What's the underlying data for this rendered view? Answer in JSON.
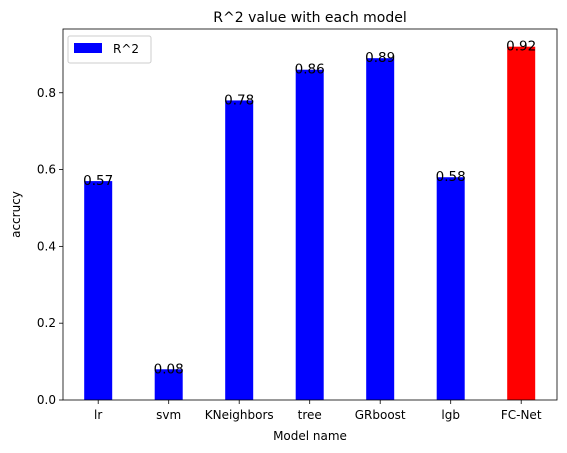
{
  "chart_data": {
    "type": "bar",
    "title": "R^2 value with each model",
    "xlabel": "Model name",
    "ylabel": "accrucy",
    "categories": [
      "lr",
      "svm",
      "KNeighbors",
      "tree",
      "GRboost",
      "lgb",
      "FC-Net"
    ],
    "series": [
      {
        "name": "R^2",
        "values": [
          0.57,
          0.08,
          0.78,
          0.86,
          0.89,
          0.58,
          0.92
        ],
        "colors": [
          "#0000ff",
          "#0000ff",
          "#0000ff",
          "#0000ff",
          "#0000ff",
          "#0000ff",
          "#ff0000"
        ]
      }
    ],
    "data_labels": [
      "0.57",
      "0.08",
      "0.78",
      "0.86",
      "0.89",
      "0.58",
      "0.92"
    ],
    "yticks": [
      0.0,
      0.2,
      0.4,
      0.6,
      0.8
    ],
    "ytick_labels": [
      "0.0",
      "0.2",
      "0.4",
      "0.6",
      "0.8"
    ],
    "ylim": [
      0,
      0.966
    ],
    "grid": false,
    "legend": {
      "position": "top-left",
      "entries": [
        {
          "label": "R^2",
          "color": "#0000ff"
        }
      ]
    }
  }
}
